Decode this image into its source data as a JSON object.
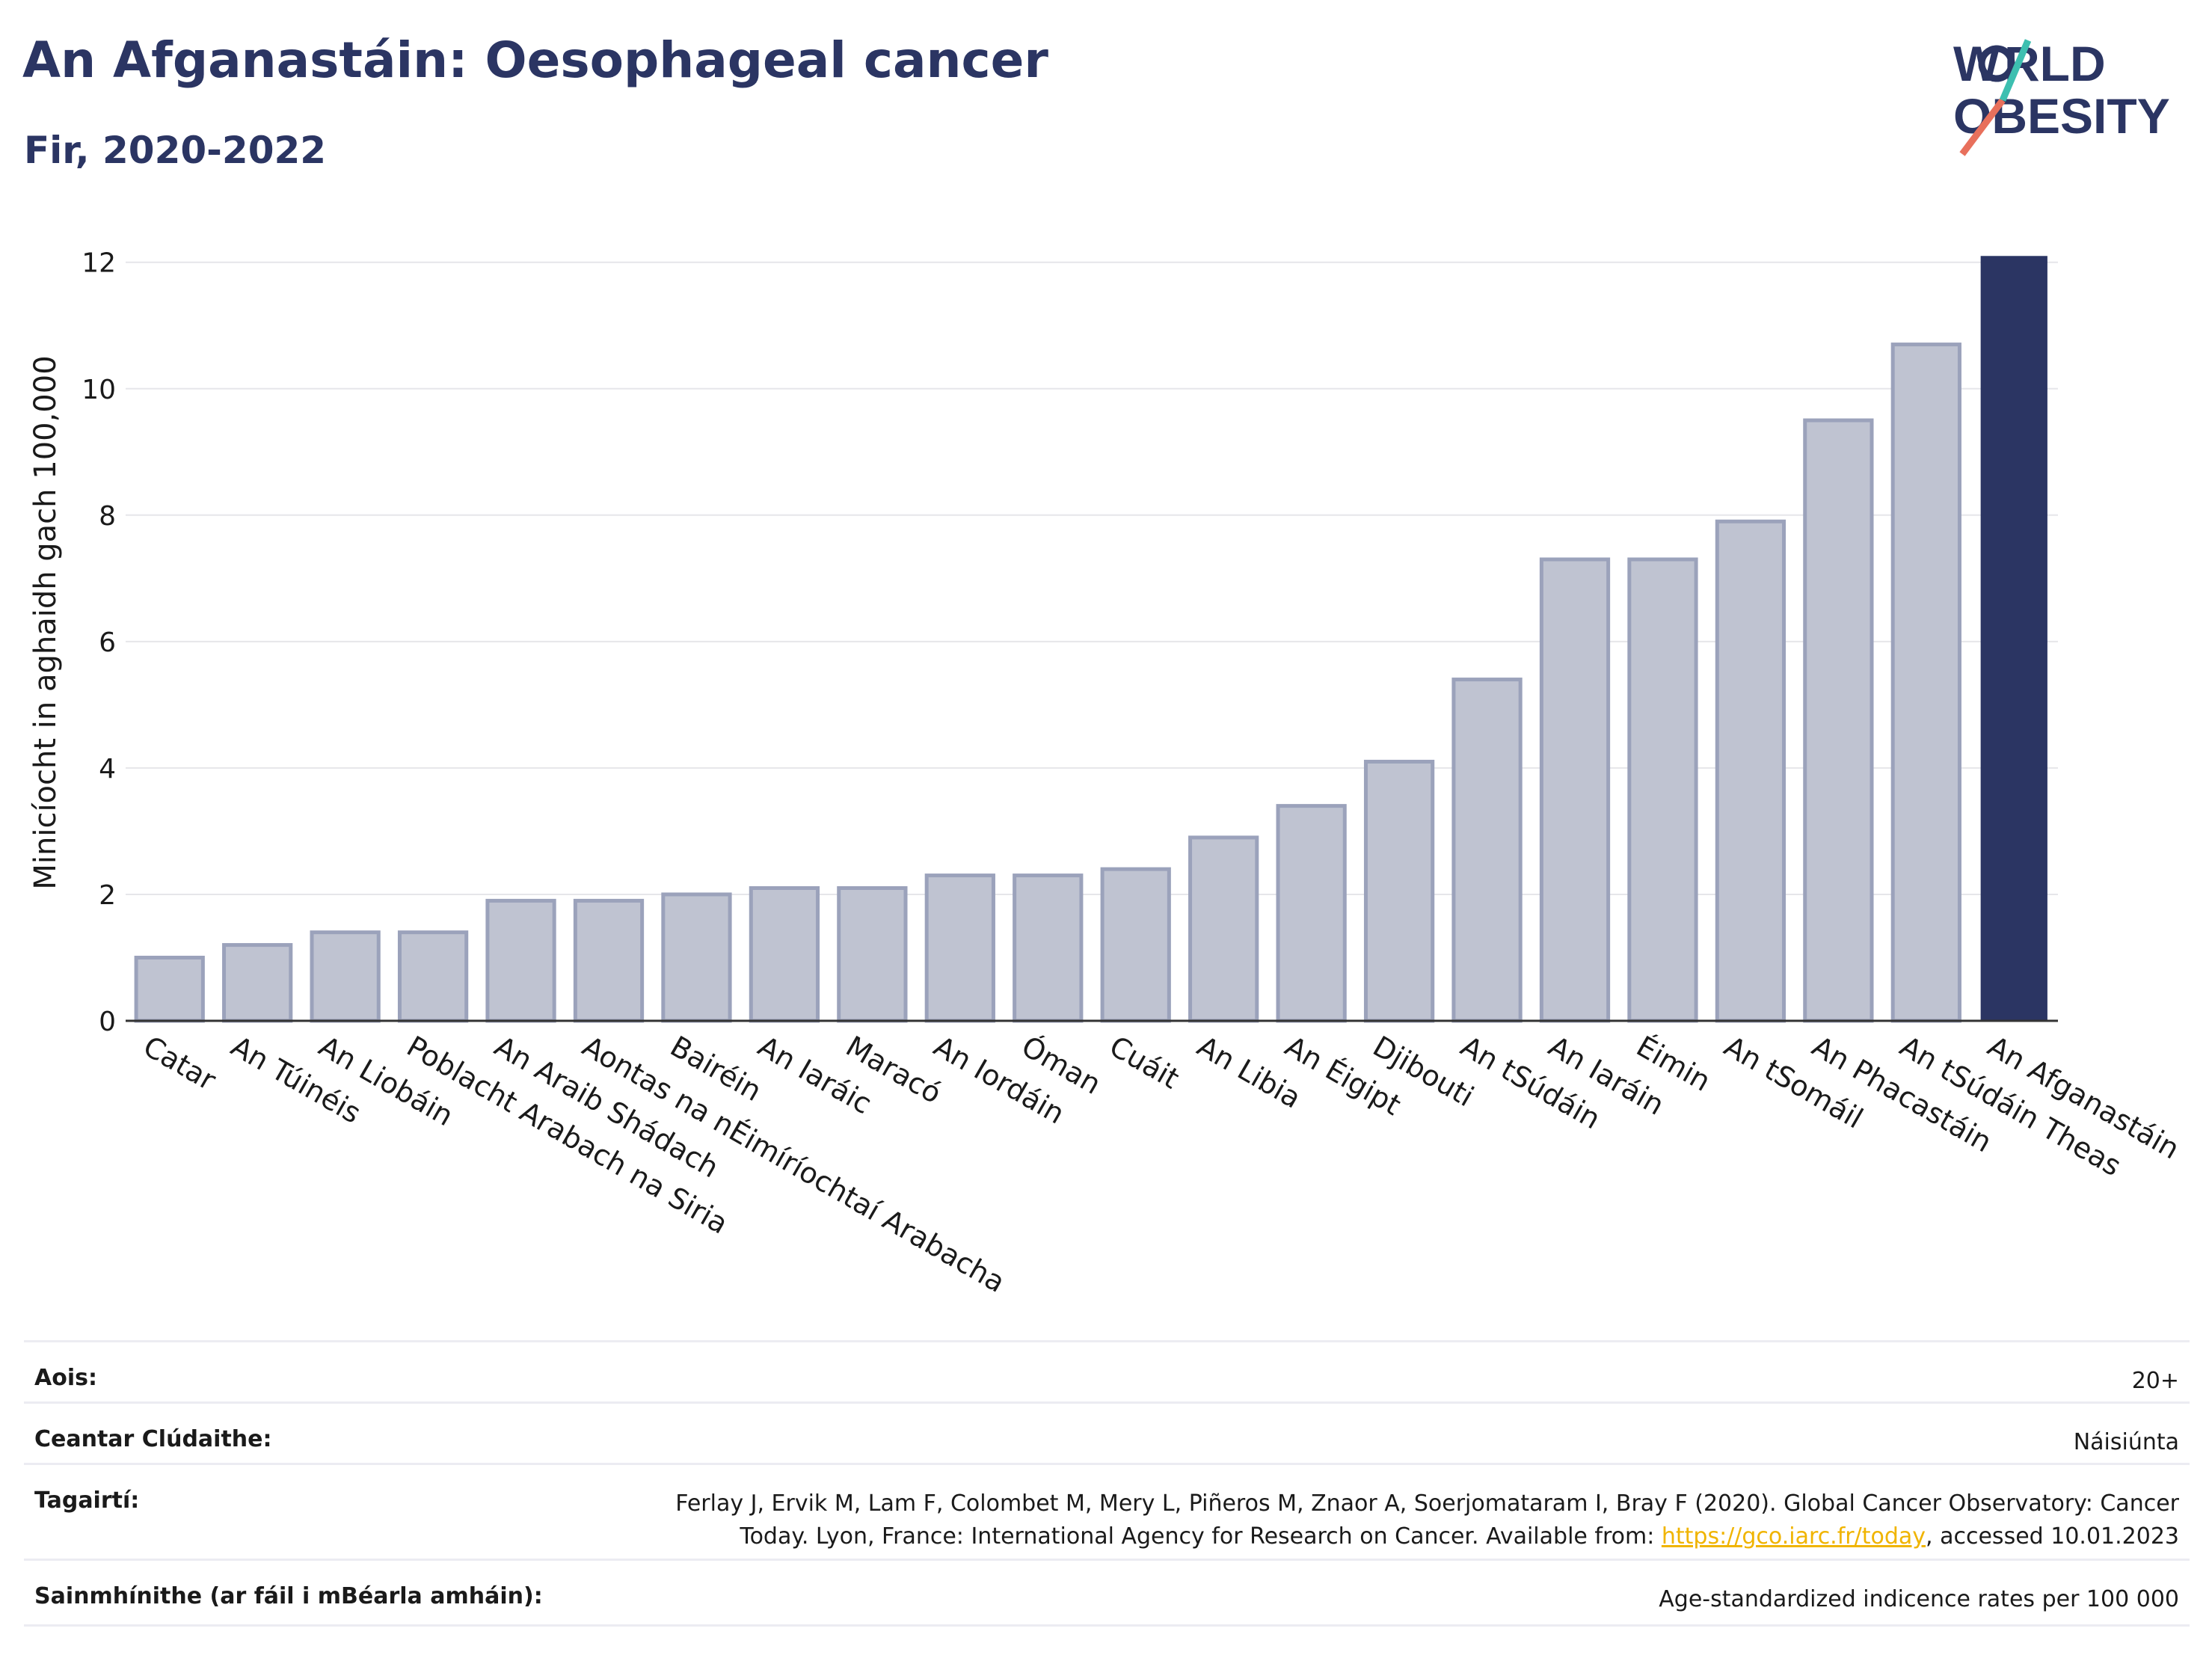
{
  "header": {
    "title": "An Afganastáin: Oesophageal cancer",
    "subtitle": "Fir, 2020-2022"
  },
  "logo": {
    "line1": "WORLD",
    "line2": "OBESITY"
  },
  "chart_data": {
    "type": "bar",
    "ylabel": "Minicíocht in aghaidh gach 100,000",
    "ylim": [
      0,
      12.6
    ],
    "yticks": [
      0,
      2,
      4,
      6,
      8,
      10,
      12
    ],
    "grid": true,
    "categories": [
      "Catar",
      "An Túinéis",
      "An Liobáin",
      "Poblacht Arabach na Siria",
      "An Araib Shádach",
      "Aontas na nÉimíríochtaí Arabacha",
      "Bairéin",
      "An Iaráic",
      "Maracó",
      "An Iordáin",
      "Óman",
      "Cuáit",
      "An Libia",
      "An Éigipt",
      "Djibouti",
      "An tSúdáin",
      "An Iaráin",
      "Éimin",
      "An tSomáil",
      "An Phacastáin",
      "An tSúdáin Theas",
      "An Afganastáin"
    ],
    "values": [
      1.0,
      1.2,
      1.4,
      1.4,
      1.9,
      1.9,
      2.0,
      2.1,
      2.1,
      2.3,
      2.3,
      2.4,
      2.9,
      3.4,
      4.1,
      5.4,
      7.3,
      7.3,
      7.9,
      9.5,
      10.7,
      12.1
    ],
    "highlight": "An Afganastáin",
    "colors": {
      "bar": "#bfc3d1",
      "bar_edge": "#9ba2bb",
      "highlight": "#2b3563",
      "grid": "#e6e6ea",
      "axis": "#333333"
    }
  },
  "info": {
    "age_label": "Aois:",
    "age_value": "20+",
    "coverage_label": "Ceantar Clúdaithe:",
    "coverage_value": "Náisiúnta",
    "refs_label": "Tagairtí:",
    "refs_line1": "Ferlay J, Ervik M, Lam F, Colombet M, Mery L, Piñeros M, Znaor A, Soerjomataram I, Bray F (2020). Global Cancer Observatory: Cancer",
    "refs_line2_pre": "Today. Lyon, France: International Agency for Research on Cancer. Available from: ",
    "refs_link": "https://gco.iarc.fr/today",
    "refs_line2_post": ", accessed 10.01.2023",
    "defs_label": "Sainmhínithe (ar fáil i mBéarla amháin):",
    "defs_value": "Age-standardized indicence rates per 100 000"
  }
}
